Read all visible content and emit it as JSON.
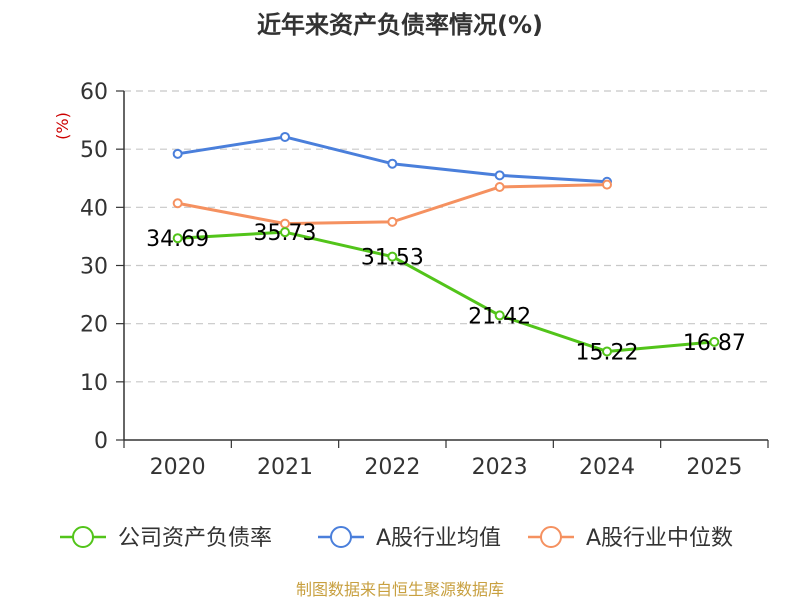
{
  "chart_data": {
    "type": "line",
    "title": "近年来资产负债率情况(%)",
    "ylabel": "(%)",
    "xlabel": "",
    "categories": [
      "2020",
      "2021",
      "2022",
      "2023",
      "2024",
      "2025"
    ],
    "ylim": [
      0,
      60
    ],
    "yticks": [
      0,
      10,
      20,
      30,
      40,
      50,
      60
    ],
    "grid": true,
    "legend_position": "bottom",
    "series": [
      {
        "name": "公司资产负债率",
        "color": "#52c41a",
        "values": [
          34.69,
          35.73,
          31.53,
          21.42,
          15.22,
          16.87
        ],
        "labels": [
          "34.69",
          "35.73",
          "31.53",
          "21.42",
          "15.22",
          "16.87"
        ],
        "show_labels": true
      },
      {
        "name": "A股行业均值",
        "color": "#4a7fdb",
        "values": [
          49.2,
          52.1,
          47.5,
          45.5,
          44.4,
          null
        ],
        "show_labels": false
      },
      {
        "name": "A股行业中位数",
        "color": "#f59160",
        "values": [
          40.7,
          37.2,
          37.5,
          43.5,
          43.9,
          null
        ],
        "show_labels": false
      }
    ]
  },
  "source": "制图数据来自恒生聚源数据库"
}
